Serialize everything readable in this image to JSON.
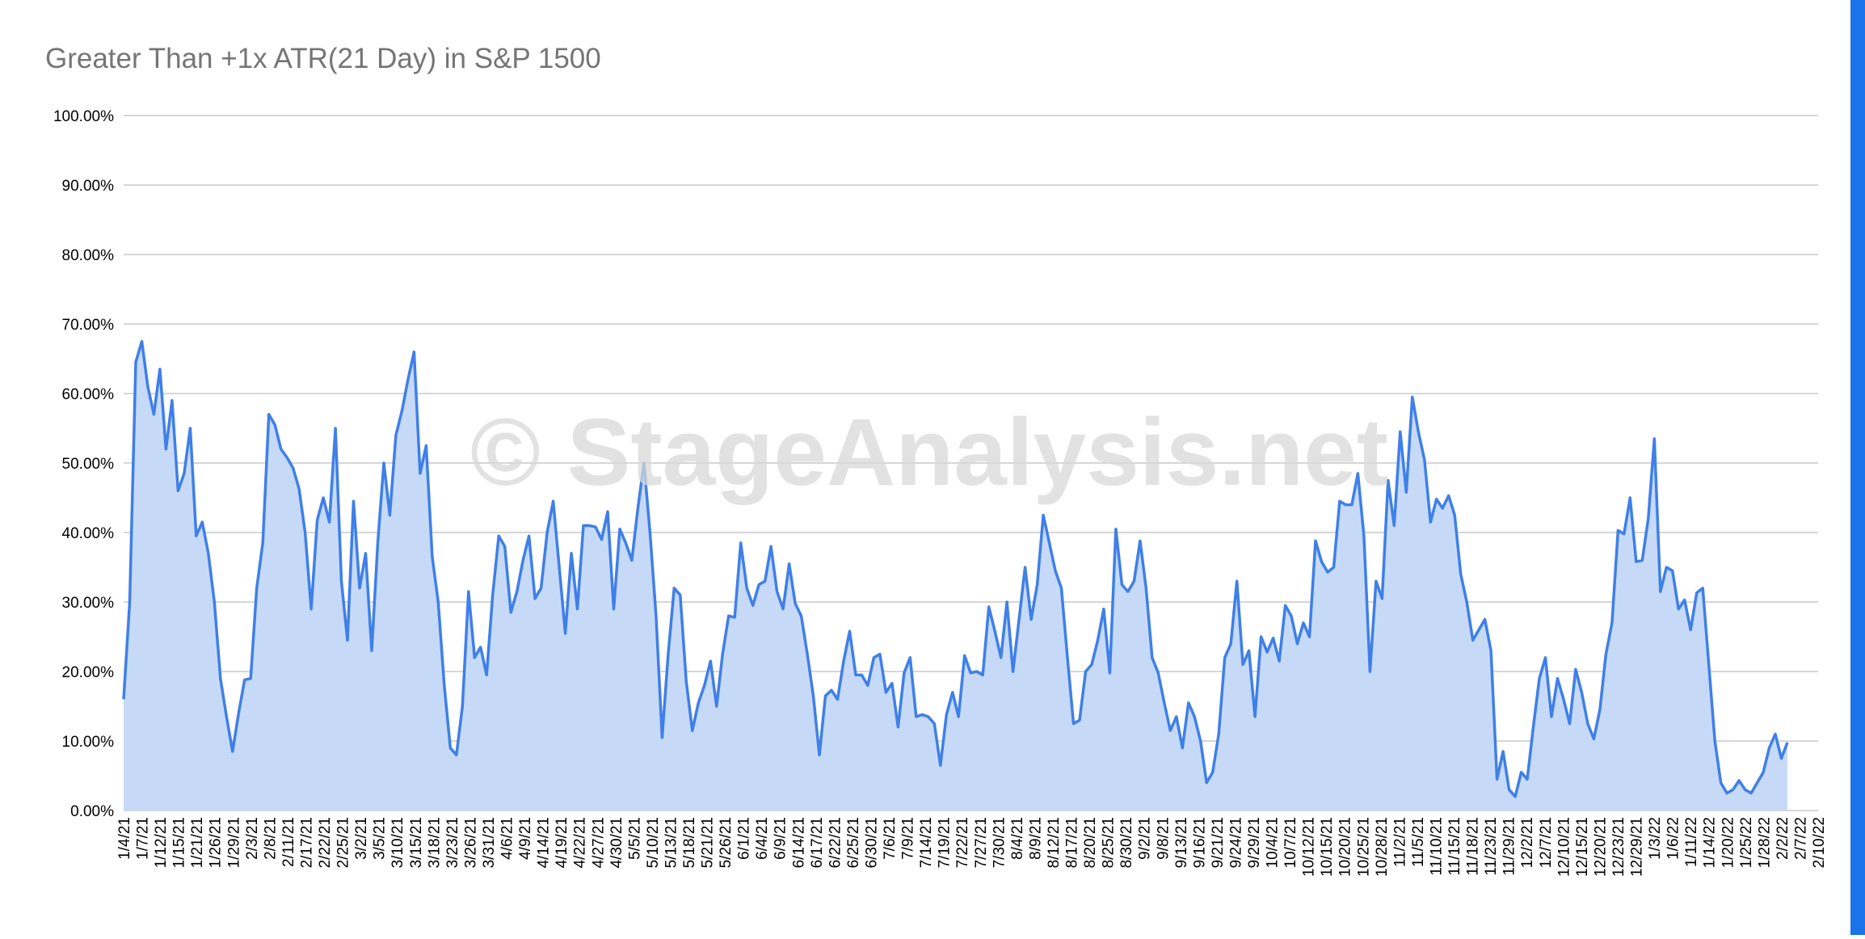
{
  "colors": {
    "line": "#3f7fe8",
    "fill": "#c6daf8",
    "grid": "#c8c8c8",
    "title": "#757575",
    "axis_text": "#000000",
    "watermark": "#d8d8d8",
    "right_strip": "#1a73e8"
  },
  "watermark": "© StageAnalysis.net",
  "chart_data": {
    "type": "area",
    "title": "Greater Than +1x ATR(21 Day) in S&P 1500",
    "xlabel": "",
    "ylabel": "",
    "ylim": [
      0,
      100
    ],
    "grid": true,
    "legend": "none",
    "y_ticks": [
      "0.00%",
      "10.00%",
      "20.00%",
      "30.00%",
      "40.00%",
      "50.00%",
      "60.00%",
      "70.00%",
      "80.00%",
      "90.00%",
      "100.00%"
    ],
    "x_ticks": [
      "1/4/21",
      "1/7/21",
      "1/12/21",
      "1/15/21",
      "1/21/21",
      "1/26/21",
      "1/29/21",
      "2/3/21",
      "2/8/21",
      "2/11/21",
      "2/17/21",
      "2/22/21",
      "2/25/21",
      "3/2/21",
      "3/5/21",
      "3/10/21",
      "3/15/21",
      "3/18/21",
      "3/23/21",
      "3/26/21",
      "3/31/21",
      "4/6/21",
      "4/9/21",
      "4/14/21",
      "4/19/21",
      "4/22/21",
      "4/27/21",
      "4/30/21",
      "5/5/21",
      "5/10/21",
      "5/13/21",
      "5/18/21",
      "5/21/21",
      "5/26/21",
      "6/1/21",
      "6/4/21",
      "6/9/21",
      "6/14/21",
      "6/17/21",
      "6/22/21",
      "6/25/21",
      "6/30/21",
      "7/6/21",
      "7/9/21",
      "7/14/21",
      "7/19/21",
      "7/22/21",
      "7/27/21",
      "7/30/21",
      "8/4/21",
      "8/9/21",
      "8/12/21",
      "8/17/21",
      "8/20/21",
      "8/25/21",
      "8/30/21",
      "9/2/21",
      "9/8/21",
      "9/13/21",
      "9/16/21",
      "9/21/21",
      "9/24/21",
      "9/29/21",
      "10/4/21",
      "10/7/21",
      "10/12/21",
      "10/15/21",
      "10/20/21",
      "10/25/21",
      "10/28/21",
      "11/2/21",
      "11/5/21",
      "11/10/21",
      "11/15/21",
      "11/18/21",
      "11/23/21",
      "11/29/21",
      "12/2/21",
      "12/7/21",
      "12/10/21",
      "12/15/21",
      "12/20/21",
      "12/23/21",
      "12/29/21",
      "1/3/22",
      "1/6/22",
      "1/11/22",
      "1/14/22",
      "1/20/22",
      "1/25/22",
      "1/28/22",
      "2/2/22",
      "2/7/22",
      "2/10/22"
    ],
    "series": [
      {
        "values": [
          16,
          30,
          64.5,
          67.5,
          61,
          57,
          63.5,
          52,
          59,
          46,
          48.5,
          55,
          39.5,
          41.5,
          37,
          30,
          19,
          13.5,
          8.5,
          14,
          18.8,
          19,
          32,
          38.5,
          57,
          55.5,
          52,
          50.8,
          49.3,
          46.3,
          40,
          29,
          41.8,
          45,
          41.5,
          55,
          33,
          24.5,
          44.5,
          32,
          37,
          23,
          38.5,
          50,
          42.5,
          54,
          57.5,
          62,
          66,
          48.5,
          52.5,
          36.5,
          30,
          18,
          9,
          8,
          15,
          31.5,
          22,
          23.5,
          19.5,
          31,
          39.5,
          38,
          28.5,
          31.5,
          36,
          39.5,
          30.5,
          32,
          40,
          44.5,
          35,
          25.5,
          37,
          29,
          41,
          41,
          40.8,
          39,
          43,
          29,
          40.5,
          38.5,
          36,
          43.5,
          50,
          40,
          28,
          10.5,
          22.5,
          32,
          31,
          18.5,
          11.5,
          15.5,
          18,
          21.5,
          15,
          22.5,
          28,
          27.8,
          38.5,
          32,
          29.5,
          32.5,
          33,
          38,
          31.5,
          29,
          35.5,
          29.8,
          28,
          22.5,
          16.5,
          8,
          16.5,
          17.3,
          16,
          21.5,
          25.8,
          19.5,
          19.5,
          18,
          22,
          22.5,
          17,
          18.3,
          12,
          19.8,
          22,
          13.5,
          13.8,
          13.5,
          12.5,
          6.5,
          13.8,
          17,
          13.5,
          22.3,
          19.8,
          20,
          19.5,
          29.3,
          25.8,
          22,
          30,
          20,
          27.5,
          35,
          27.5,
          32.5,
          42.5,
          38.5,
          34.5,
          32,
          22,
          12.5,
          13,
          20,
          21,
          24.5,
          29,
          19.8,
          40.5,
          32.5,
          31.5,
          33,
          38.8,
          32,
          22,
          19.8,
          15.5,
          11.5,
          13.5,
          9,
          15.5,
          13.5,
          10,
          4,
          5.5,
          11,
          22,
          24,
          33,
          21,
          23,
          13.5,
          25,
          22.8,
          24.8,
          21.5,
          29.5,
          28,
          24,
          27,
          25,
          38.8,
          35.8,
          34.3,
          35,
          44.5,
          44,
          44,
          48.5,
          39.5,
          20,
          33,
          30.5,
          47.5,
          41,
          54.5,
          45.8,
          59.5,
          54.5,
          50.5,
          41.5,
          44.8,
          43.5,
          45.3,
          42.5,
          34,
          30,
          24.5,
          26,
          27.5,
          23,
          4.5,
          8.5,
          3,
          2,
          5.5,
          4.5,
          12,
          19,
          22,
          13.5,
          19,
          16,
          12.5,
          20.3,
          17,
          12.5,
          10.3,
          14.5,
          22.5,
          27,
          40.3,
          39.8,
          45,
          35.8,
          36,
          42,
          53.5,
          31.5,
          35,
          34.5,
          29,
          30.3,
          26,
          31.3,
          32,
          21,
          10,
          4,
          2.5,
          3,
          4.3,
          3,
          2.5,
          4,
          5.5,
          9,
          11,
          7.5,
          9.8
        ]
      }
    ]
  }
}
